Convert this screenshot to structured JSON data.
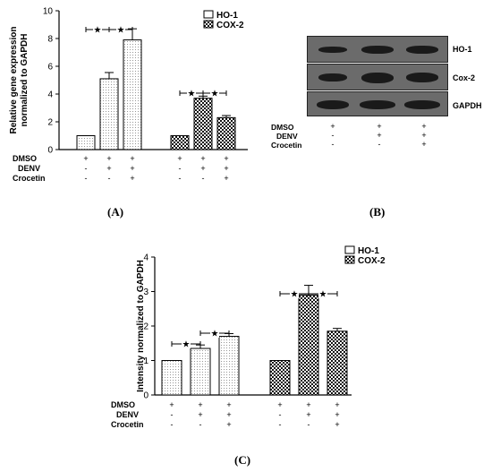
{
  "colors": {
    "bar_stroke": "#000000",
    "hatch": "#000000"
  },
  "panels": {
    "A": {
      "label": "(A)"
    },
    "B": {
      "label": "(B)"
    },
    "C": {
      "label": "(C)"
    }
  },
  "conditions": {
    "rows": [
      "DMSO",
      "DENV",
      "Crocetin"
    ],
    "signs": [
      [
        "+",
        "+",
        "+"
      ],
      [
        "-",
        "+",
        "+"
      ],
      [
        "-",
        "-",
        "+"
      ]
    ]
  },
  "blot": {
    "rows": [
      "HO-1",
      "Cox-2",
      "GAPDH"
    ]
  },
  "significance": {
    "symbol": "★"
  },
  "chart_data": [
    {
      "type": "bar",
      "panel": "A",
      "ylabel": "Relative gene expression normalized to GAPDH",
      "ylim": [
        0,
        10
      ],
      "yticks": [
        0,
        2,
        4,
        6,
        8,
        10
      ],
      "groups": [
        "HO-1",
        "COX-2"
      ],
      "series": [
        {
          "name": "HO-1",
          "fill": "dotted",
          "values": [
            1.0,
            5.1,
            7.9
          ],
          "errors": [
            0,
            0.45,
            0.8
          ]
        },
        {
          "name": "COX-2",
          "fill": "checker",
          "values": [
            1.0,
            3.7,
            2.3
          ],
          "errors": [
            0,
            0.15,
            0.15
          ]
        }
      ],
      "legend": [
        "HO-1",
        "COX-2"
      ],
      "legend_position": "top-right"
    },
    {
      "type": "bar",
      "panel": "C",
      "ylabel": "Intensity normalized to GAPDH",
      "ylim": [
        0,
        4
      ],
      "yticks": [
        0,
        1,
        2,
        3,
        4
      ],
      "groups": [
        "HO-1",
        "COX-2"
      ],
      "series": [
        {
          "name": "HO-1",
          "fill": "dotted",
          "values": [
            1.0,
            1.35,
            1.7
          ],
          "errors": [
            0,
            0.1,
            0.08
          ]
        },
        {
          "name": "COX-2",
          "fill": "checker",
          "values": [
            1.0,
            2.9,
            1.85
          ],
          "errors": [
            0,
            0.28,
            0.08
          ]
        }
      ],
      "legend": [
        "HO-1",
        "COX-2"
      ],
      "legend_position": "top-right"
    }
  ]
}
